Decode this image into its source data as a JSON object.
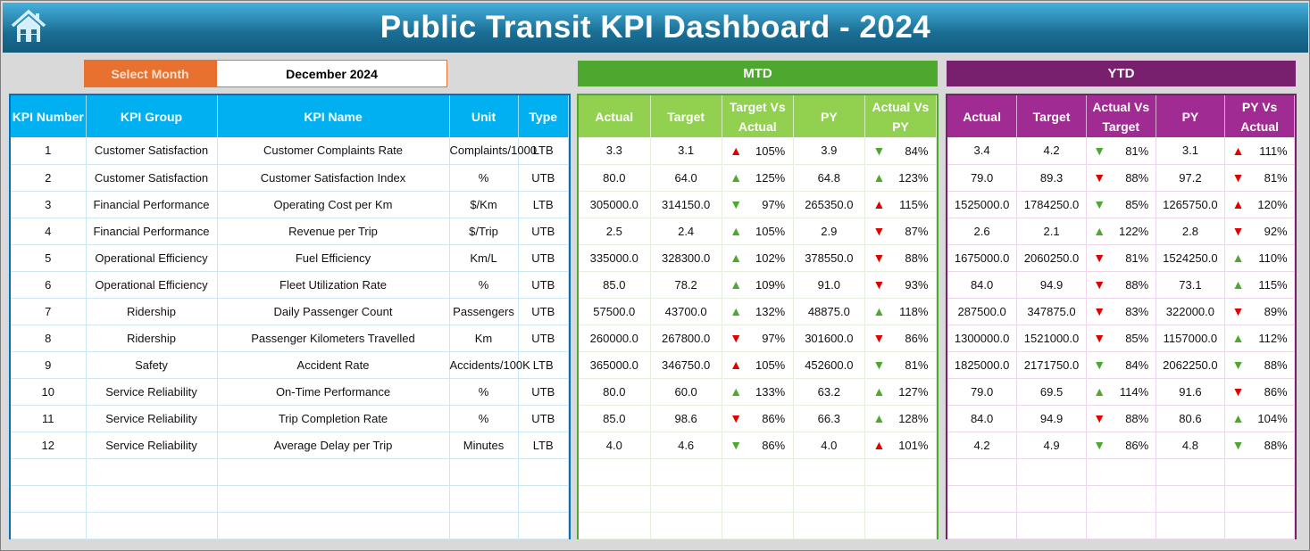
{
  "title": "Public Transit KPI Dashboard - 2024",
  "select_month": {
    "label": "Select Month",
    "value": "December 2024"
  },
  "sections": {
    "mtd": "MTD",
    "ytd": "YTD"
  },
  "colors": {
    "title_bar": "#1a6e94",
    "select_label": "#e8712f",
    "kpi_header": "#00b0f0",
    "mtd_band": "#4ea72e",
    "mtd_header": "#92d050",
    "ytd_band": "#78206e",
    "ytd_header": "#a02b93",
    "arrow_red": "#e00000",
    "arrow_green": "#4ea72e"
  },
  "icons": {
    "home": "home-icon",
    "up": "triangle-up-icon",
    "down": "triangle-down-icon"
  },
  "kpi_headers": [
    "KPI Number",
    "KPI Group",
    "KPI Name",
    "Unit",
    "Type"
  ],
  "mtd_headers": [
    "Actual",
    "Target",
    "Target Vs Actual",
    "PY",
    "Actual Vs PY"
  ],
  "ytd_headers": [
    "Actual",
    "Target",
    "Actual Vs Target",
    "PY",
    "PY Vs Actual"
  ],
  "rows": [
    {
      "num": "1",
      "group": "Customer Satisfaction",
      "name": "Customer Complaints Rate",
      "unit": "Complaints/1000",
      "type": "LTB",
      "mtd": {
        "actual": "3.3",
        "target": "3.1",
        "c1": {
          "dir": "up",
          "color": "red",
          "pct": "105%"
        },
        "py": "3.9",
        "c2": {
          "dir": "down",
          "color": "green",
          "pct": "84%"
        }
      },
      "ytd": {
        "actual": "3.4",
        "target": "4.2",
        "c1": {
          "dir": "down",
          "color": "green",
          "pct": "81%"
        },
        "py": "3.1",
        "c2": {
          "dir": "up",
          "color": "red",
          "pct": "111%"
        }
      }
    },
    {
      "num": "2",
      "group": "Customer Satisfaction",
      "name": "Customer Satisfaction Index",
      "unit": "%",
      "type": "UTB",
      "mtd": {
        "actual": "80.0",
        "target": "64.0",
        "c1": {
          "dir": "up",
          "color": "green",
          "pct": "125%"
        },
        "py": "64.8",
        "c2": {
          "dir": "up",
          "color": "green",
          "pct": "123%"
        }
      },
      "ytd": {
        "actual": "79.0",
        "target": "89.3",
        "c1": {
          "dir": "down",
          "color": "red",
          "pct": "88%"
        },
        "py": "97.2",
        "c2": {
          "dir": "down",
          "color": "red",
          "pct": "81%"
        }
      }
    },
    {
      "num": "3",
      "group": "Financial Performance",
      "name": "Operating Cost per Km",
      "unit": "$/Km",
      "type": "LTB",
      "mtd": {
        "actual": "305000.0",
        "target": "314150.0",
        "c1": {
          "dir": "down",
          "color": "green",
          "pct": "97%"
        },
        "py": "265350.0",
        "c2": {
          "dir": "up",
          "color": "red",
          "pct": "115%"
        }
      },
      "ytd": {
        "actual": "1525000.0",
        "target": "1784250.0",
        "c1": {
          "dir": "down",
          "color": "green",
          "pct": "85%"
        },
        "py": "1265750.0",
        "c2": {
          "dir": "up",
          "color": "red",
          "pct": "120%"
        }
      }
    },
    {
      "num": "4",
      "group": "Financial Performance",
      "name": "Revenue per Trip",
      "unit": "$/Trip",
      "type": "UTB",
      "mtd": {
        "actual": "2.5",
        "target": "2.4",
        "c1": {
          "dir": "up",
          "color": "green",
          "pct": "105%"
        },
        "py": "2.9",
        "c2": {
          "dir": "down",
          "color": "red",
          "pct": "87%"
        }
      },
      "ytd": {
        "actual": "2.6",
        "target": "2.1",
        "c1": {
          "dir": "up",
          "color": "green",
          "pct": "122%"
        },
        "py": "2.8",
        "c2": {
          "dir": "down",
          "color": "red",
          "pct": "92%"
        }
      }
    },
    {
      "num": "5",
      "group": "Operational Efficiency",
      "name": "Fuel Efficiency",
      "unit": "Km/L",
      "type": "UTB",
      "mtd": {
        "actual": "335000.0",
        "target": "328300.0",
        "c1": {
          "dir": "up",
          "color": "green",
          "pct": "102%"
        },
        "py": "378550.0",
        "c2": {
          "dir": "down",
          "color": "red",
          "pct": "88%"
        }
      },
      "ytd": {
        "actual": "1675000.0",
        "target": "2060250.0",
        "c1": {
          "dir": "down",
          "color": "red",
          "pct": "81%"
        },
        "py": "1524250.0",
        "c2": {
          "dir": "up",
          "color": "green",
          "pct": "110%"
        }
      }
    },
    {
      "num": "6",
      "group": "Operational Efficiency",
      "name": "Fleet Utilization Rate",
      "unit": "%",
      "type": "UTB",
      "mtd": {
        "actual": "85.0",
        "target": "78.2",
        "c1": {
          "dir": "up",
          "color": "green",
          "pct": "109%"
        },
        "py": "91.0",
        "c2": {
          "dir": "down",
          "color": "red",
          "pct": "93%"
        }
      },
      "ytd": {
        "actual": "84.0",
        "target": "94.9",
        "c1": {
          "dir": "down",
          "color": "red",
          "pct": "88%"
        },
        "py": "73.1",
        "c2": {
          "dir": "up",
          "color": "green",
          "pct": "115%"
        }
      }
    },
    {
      "num": "7",
      "group": "Ridership",
      "name": "Daily Passenger Count",
      "unit": "Passengers",
      "type": "UTB",
      "mtd": {
        "actual": "57500.0",
        "target": "43700.0",
        "c1": {
          "dir": "up",
          "color": "green",
          "pct": "132%"
        },
        "py": "48875.0",
        "c2": {
          "dir": "up",
          "color": "green",
          "pct": "118%"
        }
      },
      "ytd": {
        "actual": "287500.0",
        "target": "347875.0",
        "c1": {
          "dir": "down",
          "color": "red",
          "pct": "83%"
        },
        "py": "322000.0",
        "c2": {
          "dir": "down",
          "color": "red",
          "pct": "89%"
        }
      }
    },
    {
      "num": "8",
      "group": "Ridership",
      "name": "Passenger Kilometers Travelled",
      "unit": "Km",
      "type": "UTB",
      "mtd": {
        "actual": "260000.0",
        "target": "267800.0",
        "c1": {
          "dir": "down",
          "color": "red",
          "pct": "97%"
        },
        "py": "301600.0",
        "c2": {
          "dir": "down",
          "color": "red",
          "pct": "86%"
        }
      },
      "ytd": {
        "actual": "1300000.0",
        "target": "1521000.0",
        "c1": {
          "dir": "down",
          "color": "red",
          "pct": "85%"
        },
        "py": "1157000.0",
        "c2": {
          "dir": "up",
          "color": "green",
          "pct": "112%"
        }
      }
    },
    {
      "num": "9",
      "group": "Safety",
      "name": "Accident Rate",
      "unit": "Accidents/100K",
      "type": "LTB",
      "mtd": {
        "actual": "365000.0",
        "target": "346750.0",
        "c1": {
          "dir": "up",
          "color": "red",
          "pct": "105%"
        },
        "py": "452600.0",
        "c2": {
          "dir": "down",
          "color": "green",
          "pct": "81%"
        }
      },
      "ytd": {
        "actual": "1825000.0",
        "target": "2171750.0",
        "c1": {
          "dir": "down",
          "color": "green",
          "pct": "84%"
        },
        "py": "2062250.0",
        "c2": {
          "dir": "down",
          "color": "green",
          "pct": "88%"
        }
      }
    },
    {
      "num": "10",
      "group": "Service Reliability",
      "name": "On-Time Performance",
      "unit": "%",
      "type": "UTB",
      "mtd": {
        "actual": "80.0",
        "target": "60.0",
        "c1": {
          "dir": "up",
          "color": "green",
          "pct": "133%"
        },
        "py": "63.2",
        "c2": {
          "dir": "up",
          "color": "green",
          "pct": "127%"
        }
      },
      "ytd": {
        "actual": "79.0",
        "target": "69.5",
        "c1": {
          "dir": "up",
          "color": "green",
          "pct": "114%"
        },
        "py": "91.6",
        "c2": {
          "dir": "down",
          "color": "red",
          "pct": "86%"
        }
      }
    },
    {
      "num": "11",
      "group": "Service Reliability",
      "name": "Trip Completion Rate",
      "unit": "%",
      "type": "UTB",
      "mtd": {
        "actual": "85.0",
        "target": "98.6",
        "c1": {
          "dir": "down",
          "color": "red",
          "pct": "86%"
        },
        "py": "66.3",
        "c2": {
          "dir": "up",
          "color": "green",
          "pct": "128%"
        }
      },
      "ytd": {
        "actual": "84.0",
        "target": "94.9",
        "c1": {
          "dir": "down",
          "color": "red",
          "pct": "88%"
        },
        "py": "80.6",
        "c2": {
          "dir": "up",
          "color": "green",
          "pct": "104%"
        }
      }
    },
    {
      "num": "12",
      "group": "Service Reliability",
      "name": "Average Delay per Trip",
      "unit": "Minutes",
      "type": "LTB",
      "mtd": {
        "actual": "4.0",
        "target": "4.6",
        "c1": {
          "dir": "down",
          "color": "green",
          "pct": "86%"
        },
        "py": "4.0",
        "c2": {
          "dir": "up",
          "color": "red",
          "pct": "101%"
        }
      },
      "ytd": {
        "actual": "4.2",
        "target": "4.9",
        "c1": {
          "dir": "down",
          "color": "green",
          "pct": "86%"
        },
        "py": "4.8",
        "c2": {
          "dir": "down",
          "color": "green",
          "pct": "88%"
        }
      }
    }
  ]
}
